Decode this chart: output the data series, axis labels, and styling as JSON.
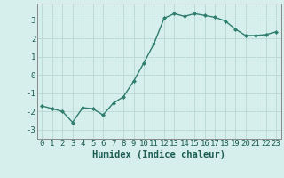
{
  "x": [
    0,
    1,
    2,
    3,
    4,
    5,
    6,
    7,
    8,
    9,
    10,
    11,
    12,
    13,
    14,
    15,
    16,
    17,
    18,
    19,
    20,
    21,
    22,
    23
  ],
  "y": [
    -1.7,
    -1.85,
    -2.0,
    -2.6,
    -1.8,
    -1.85,
    -2.2,
    -1.55,
    -1.2,
    -0.35,
    0.65,
    1.7,
    3.1,
    3.35,
    3.2,
    3.35,
    3.25,
    3.15,
    2.95,
    2.5,
    2.15,
    2.15,
    2.2,
    2.35
  ],
  "xlabel": "Humidex (Indice chaleur)",
  "xlim": [
    -0.5,
    23.5
  ],
  "ylim": [
    -3.5,
    3.9
  ],
  "yticks": [
    -3,
    -2,
    -1,
    0,
    1,
    2,
    3
  ],
  "xtick_labels": [
    "0",
    "1",
    "2",
    "3",
    "4",
    "5",
    "6",
    "7",
    "8",
    "9",
    "10",
    "11",
    "12",
    "13",
    "14",
    "15",
    "16",
    "17",
    "18",
    "19",
    "20",
    "21",
    "22",
    "23"
  ],
  "line_color": "#2e7d6e",
  "marker": "D",
  "marker_size": 2.0,
  "bg_color": "#d6efec",
  "grid_color": "#b8d8d4",
  "font_color": "#1a5c52",
  "xlabel_fontsize": 7.5,
  "tick_fontsize": 6.5,
  "linewidth": 1.0
}
